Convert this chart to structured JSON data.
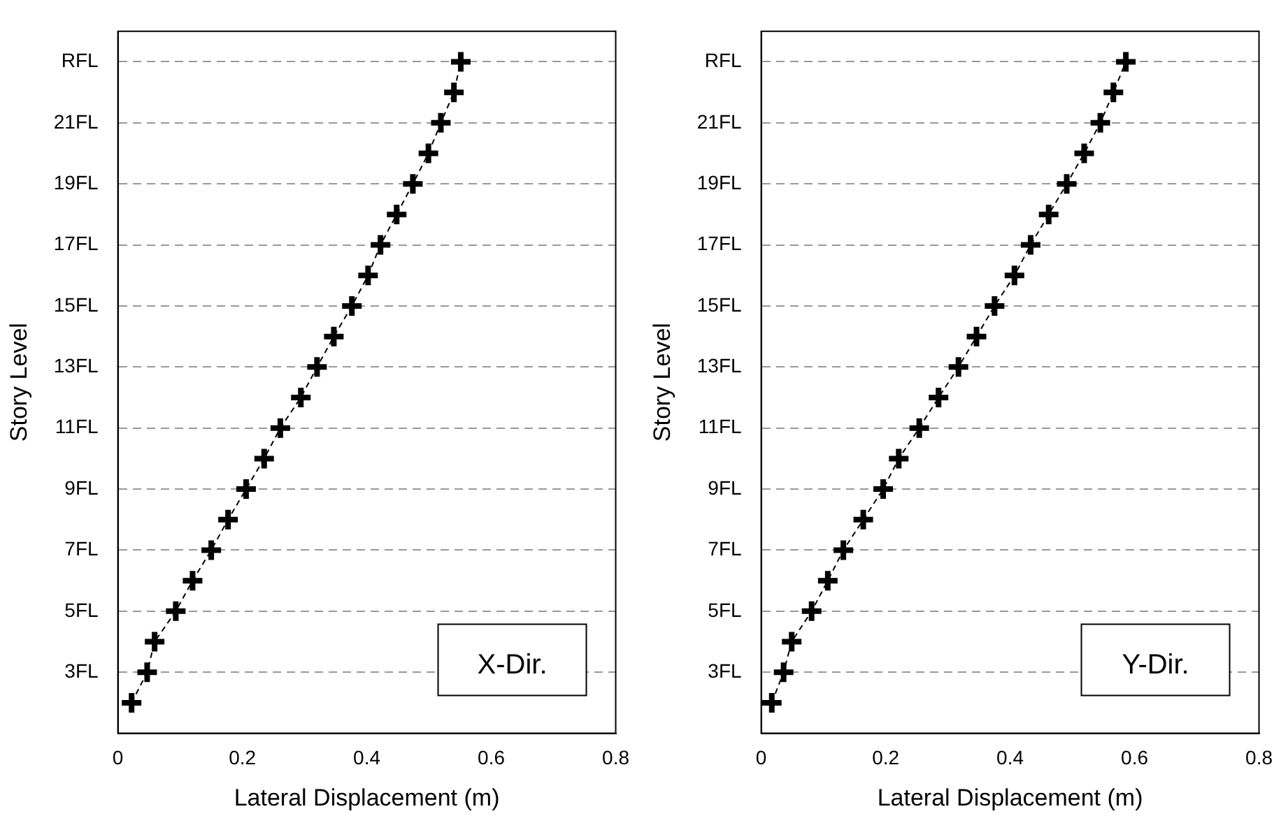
{
  "chart_data": [
    {
      "type": "line",
      "xlabel": "Lateral Displacement (m)",
      "ylabel": "Story Level",
      "annotations": [
        "X-Dir."
      ],
      "marker": "cross",
      "line_style": "dashed",
      "grid": "y",
      "legend": false,
      "xlim": [
        0,
        0.8
      ],
      "xticks": [
        0,
        0.2,
        0.4,
        0.6,
        0.8
      ],
      "ylim": [
        1,
        24
      ],
      "yticks": [
        {
          "value": 3,
          "label": "3FL"
        },
        {
          "value": 5,
          "label": "5FL"
        },
        {
          "value": 7,
          "label": "7FL"
        },
        {
          "value": 9,
          "label": "9FL"
        },
        {
          "value": 11,
          "label": "11FL"
        },
        {
          "value": 13,
          "label": "13FL"
        },
        {
          "value": 15,
          "label": "15FL"
        },
        {
          "value": 17,
          "label": "17FL"
        },
        {
          "value": 19,
          "label": "19FL"
        },
        {
          "value": 21,
          "label": "21FL"
        },
        {
          "value": 23,
          "label": "RFL"
        }
      ],
      "series": [
        {
          "color": "#000000",
          "x": [
            0.022,
            0.047,
            0.059,
            0.093,
            0.12,
            0.15,
            0.177,
            0.206,
            0.235,
            0.261,
            0.294,
            0.32,
            0.347,
            0.376,
            0.402,
            0.422,
            0.448,
            0.474,
            0.499,
            0.519,
            0.54,
            0.551
          ],
          "values": [
            2,
            3,
            4,
            5,
            6,
            7,
            8,
            9,
            10,
            11,
            12,
            13,
            14,
            15,
            16,
            17,
            18,
            19,
            20,
            21,
            22,
            23
          ]
        }
      ]
    },
    {
      "type": "line",
      "xlabel": "Lateral Displacement (m)",
      "ylabel": "Story Level",
      "annotations": [
        "Y-Dir."
      ],
      "marker": "cross",
      "line_style": "dashed",
      "grid": "y",
      "legend": false,
      "xlim": [
        0,
        0.8
      ],
      "xticks": [
        0,
        0.2,
        0.4,
        0.6,
        0.8
      ],
      "ylim": [
        1,
        24
      ],
      "yticks": [
        {
          "value": 3,
          "label": "3FL"
        },
        {
          "value": 5,
          "label": "5FL"
        },
        {
          "value": 7,
          "label": "7FL"
        },
        {
          "value": 9,
          "label": "9FL"
        },
        {
          "value": 11,
          "label": "11FL"
        },
        {
          "value": 13,
          "label": "13FL"
        },
        {
          "value": 15,
          "label": "15FL"
        },
        {
          "value": 17,
          "label": "17FL"
        },
        {
          "value": 19,
          "label": "19FL"
        },
        {
          "value": 21,
          "label": "21FL"
        },
        {
          "value": 23,
          "label": "RFL"
        }
      ],
      "series": [
        {
          "color": "#000000",
          "x": [
            0.017,
            0.036,
            0.049,
            0.081,
            0.107,
            0.132,
            0.164,
            0.196,
            0.221,
            0.254,
            0.285,
            0.317,
            0.346,
            0.375,
            0.407,
            0.433,
            0.462,
            0.491,
            0.519,
            0.545,
            0.566,
            0.586
          ],
          "values": [
            2,
            3,
            4,
            5,
            6,
            7,
            8,
            9,
            10,
            11,
            12,
            13,
            14,
            15,
            16,
            17,
            18,
            19,
            20,
            21,
            22,
            23
          ]
        }
      ]
    }
  ]
}
